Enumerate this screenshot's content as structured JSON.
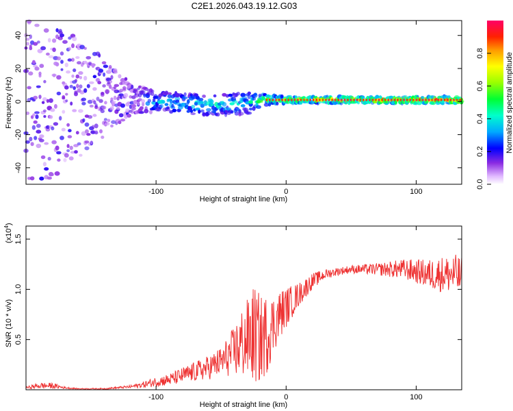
{
  "chart_data": [
    {
      "type": "heatmap",
      "title": "C2E1.2026.043.19.12.G03",
      "xlabel": "Height of straight line (km)",
      "ylabel": "Frequency (Hz)",
      "xlim": [
        -200,
        135
      ],
      "ylim": [
        -50,
        49
      ],
      "x_ticks": [
        -100,
        0,
        100
      ],
      "x_tick_labels": [
        "-100",
        "0",
        "100"
      ],
      "y_ticks": [
        -40,
        -20,
        0,
        20,
        40
      ],
      "y_tick_labels": [
        "-40",
        "-20",
        "0",
        "20",
        "40"
      ],
      "colorbar": {
        "label": "Normalized spectral amplitude",
        "range": [
          0,
          1
        ],
        "ticks": [
          0.0,
          0.2,
          0.4,
          0.6,
          0.8
        ],
        "tick_labels": [
          "0.0",
          "0.2",
          "0.4",
          "0.6",
          "0.8"
        ]
      },
      "description_points": [
        {
          "x": -180,
          "band_center": 3,
          "band_halfwidth": 50,
          "amplitude": 0.18
        },
        {
          "x": -120,
          "band_center": 2,
          "band_halfwidth": 10,
          "amplitude": 0.25
        },
        {
          "x": -100,
          "band_center": 0,
          "band_halfwidth": 6,
          "amplitude": 0.35
        },
        {
          "x": -60,
          "band_center": -2,
          "band_halfwidth": 6,
          "amplitude": 0.45
        },
        {
          "x": -30,
          "band_center": -1,
          "band_halfwidth": 7,
          "amplitude": 0.4
        },
        {
          "x": -15,
          "band_center": 1,
          "band_halfwidth": 3,
          "amplitude": 0.6
        },
        {
          "x": 0,
          "band_center": 1,
          "band_halfwidth": 2,
          "amplitude": 0.7
        },
        {
          "x": 50,
          "band_center": 1,
          "band_halfwidth": 2,
          "amplitude": 0.8
        },
        {
          "x": 100,
          "band_center": 1,
          "band_halfwidth": 2,
          "amplitude": 0.85
        },
        {
          "x": 135,
          "band_center": 1,
          "band_halfwidth": 2,
          "amplitude": 0.85
        }
      ]
    },
    {
      "type": "line",
      "xlabel": "Height of straight line (km)",
      "ylabel": "SNR (10 * v/v)",
      "y_multiplier_label": "(x10",
      "y_multiplier_exp": "4",
      "y_multiplier_close": ")",
      "xlim": [
        -200,
        135
      ],
      "ylim": [
        0,
        1.63
      ],
      "x_ticks": [
        -100,
        0,
        100
      ],
      "x_tick_labels": [
        "-100",
        "0",
        "100"
      ],
      "y_ticks": [
        0.5,
        1.0,
        1.5
      ],
      "y_tick_labels": [
        "0.5",
        "1.0",
        "1.5"
      ],
      "series": [
        {
          "name": "SNR",
          "color": "#ee3333",
          "x": [
            -200,
            -190,
            -180,
            -170,
            -160,
            -150,
            -140,
            -130,
            -120,
            -110,
            -100,
            -90,
            -80,
            -70,
            -60,
            -50,
            -40,
            -35,
            -30,
            -25,
            -20,
            -15,
            -10,
            -5,
            0,
            10,
            20,
            30,
            40,
            50,
            60,
            70,
            80,
            90,
            100,
            110,
            120,
            130,
            135
          ],
          "y": [
            0.02,
            0.04,
            0.04,
            0.02,
            0.01,
            0.01,
            0.01,
            0.02,
            0.03,
            0.05,
            0.08,
            0.1,
            0.14,
            0.18,
            0.22,
            0.28,
            0.38,
            0.45,
            0.5,
            0.55,
            0.5,
            0.55,
            0.65,
            0.75,
            0.82,
            0.95,
            1.08,
            1.15,
            1.18,
            1.2,
            1.2,
            1.2,
            1.2,
            1.2,
            1.18,
            1.15,
            1.15,
            1.15,
            1.12
          ],
          "noise": [
            0.01,
            0.03,
            0.03,
            0.01,
            0.005,
            0.005,
            0.006,
            0.01,
            0.015,
            0.03,
            0.05,
            0.06,
            0.08,
            0.1,
            0.12,
            0.15,
            0.25,
            0.35,
            0.4,
            0.5,
            0.45,
            0.4,
            0.3,
            0.25,
            0.2,
            0.12,
            0.08,
            0.05,
            0.04,
            0.04,
            0.05,
            0.06,
            0.08,
            0.1,
            0.12,
            0.15,
            0.18,
            0.2,
            0.2
          ]
        }
      ]
    }
  ]
}
